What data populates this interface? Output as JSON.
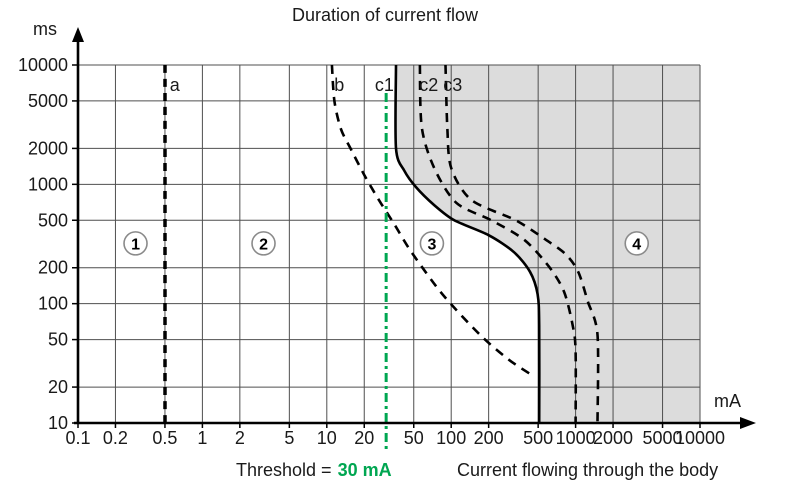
{
  "chart_data": {
    "type": "line",
    "title": "Duration of current flow",
    "x_axis": {
      "unit": "mA",
      "caption": "Current flowing through the body",
      "scale": "log",
      "range": [
        0.1,
        10000
      ],
      "tick_labels": [
        "0.1",
        "0.2",
        "0.5",
        "1",
        "2",
        "5",
        "10",
        "20",
        "50",
        "100",
        "200",
        "500",
        "1000",
        "2000",
        "5000",
        "10000"
      ]
    },
    "y_axis": {
      "unit": "ms",
      "scale": "log",
      "range": [
        10,
        10000
      ],
      "tick_labels": [
        "10",
        "20",
        "50",
        "100",
        "200",
        "500",
        "1000",
        "2000",
        "5000",
        "10000"
      ]
    },
    "threshold": {
      "label": "Threshold =",
      "value": "30 mA",
      "current_mA": 30,
      "color": "#00a651"
    },
    "zones": [
      {
        "label": "1",
        "i_mA": 0.29,
        "t_ms": 320
      },
      {
        "label": "2",
        "i_mA": 3.1,
        "t_ms": 320
      },
      {
        "label": "3",
        "i_mA": 70,
        "t_ms": 320
      },
      {
        "label": "4",
        "i_mA": 3100,
        "t_ms": 320
      }
    ],
    "curves": [
      {
        "name": "a",
        "style": "dashed",
        "label_pos": {
          "i_mA": 0.6,
          "t_ms": 6800
        },
        "points": [
          [
            0.5,
            10000
          ],
          [
            0.5,
            10
          ]
        ]
      },
      {
        "name": "b",
        "style": "dashed",
        "label_pos": {
          "i_mA": 12.6,
          "t_ms": 6800
        },
        "points": [
          [
            11,
            10000
          ],
          [
            11.5,
            5000
          ],
          [
            13,
            2900
          ],
          [
            15.5,
            2000
          ],
          [
            20,
            1200
          ],
          [
            26,
            750
          ],
          [
            35,
            460
          ],
          [
            48,
            270
          ],
          [
            85,
            120
          ],
          [
            170,
            55
          ],
          [
            290,
            34
          ],
          [
            450,
            25
          ]
        ]
      },
      {
        "name": "c1",
        "style": "solid",
        "label_pos": {
          "i_mA": 29,
          "t_ms": 6800
        },
        "points": [
          [
            36,
            10000
          ],
          [
            36,
            2000
          ],
          [
            42,
            1300
          ],
          [
            52,
            950
          ],
          [
            73,
            670
          ],
          [
            106,
            500
          ],
          [
            200,
            375
          ],
          [
            320,
            270
          ],
          [
            430,
            185
          ],
          [
            495,
            120
          ],
          [
            510,
            65
          ],
          [
            510,
            10
          ]
        ]
      },
      {
        "name": "c2",
        "style": "dashed",
        "label_pos": {
          "i_mA": 66,
          "t_ms": 6800
        },
        "points": [
          [
            56,
            10000
          ],
          [
            58,
            3000
          ],
          [
            73,
            1370
          ],
          [
            110,
            700
          ],
          [
            210,
            500
          ],
          [
            390,
            340
          ],
          [
            620,
            200
          ],
          [
            810,
            125
          ],
          [
            950,
            65
          ],
          [
            1000,
            40
          ],
          [
            1000,
            10
          ]
        ]
      },
      {
        "name": "c3",
        "style": "dashed",
        "label_pos": {
          "i_mA": 103,
          "t_ms": 6800
        },
        "points": [
          [
            90,
            10000
          ],
          [
            93,
            3000
          ],
          [
            100,
            1370
          ],
          [
            145,
            740
          ],
          [
            330,
            500
          ],
          [
            560,
            350
          ],
          [
            830,
            260
          ],
          [
            1050,
            185
          ],
          [
            1250,
            105
          ],
          [
            1500,
            55
          ],
          [
            1500,
            10
          ]
        ]
      }
    ],
    "shaded_zone": {
      "right_of_curve": "c1",
      "color": "#dcdcdc"
    },
    "colors": {
      "grid": "#4f4f4f",
      "axis": "#000000",
      "curve": "#000000",
      "zone_circle_border": "#8a8a8a",
      "text": "#1a1a1a"
    }
  }
}
